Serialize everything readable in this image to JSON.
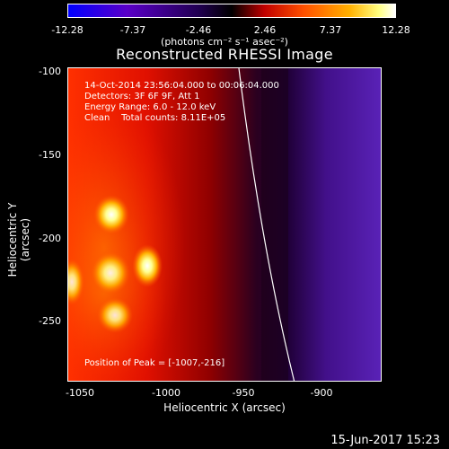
{
  "colorbar": {
    "ticks": [
      "-12.28",
      "-7.37",
      "-2.46",
      "2.46",
      "7.37",
      "12.28"
    ],
    "units": "(photons cm⁻² s⁻¹ asec⁻²)",
    "colors": [
      "#0000ff",
      "#6a00c8",
      "#000000",
      "#ff2000",
      "#ff9000",
      "#ffff60",
      "#ffffff"
    ]
  },
  "title": "Reconstructed RHESSI Image",
  "info": {
    "line1": "14-Oct-2014 23:56:04.000 to 00:06:04.000",
    "line2": "Detectors: 3F 6F 9F, Att 1",
    "line3": "Energy Range: 6.0 - 12.0 keV",
    "line4": "Clean    Total counts: 8.11E+05",
    "peak": "Position of Peak = [-1007,-216]"
  },
  "axes": {
    "y_title": "Heliocentric Y (arcsec)",
    "x_title": "Heliocentric X (arcsec)",
    "y_ticks": [
      "-100",
      "-150",
      "-200",
      "-250"
    ],
    "x_ticks": [
      "-1050",
      "-1000",
      "-950",
      "-900"
    ]
  },
  "footer_date": "15-Jun-2017 15:23"
}
